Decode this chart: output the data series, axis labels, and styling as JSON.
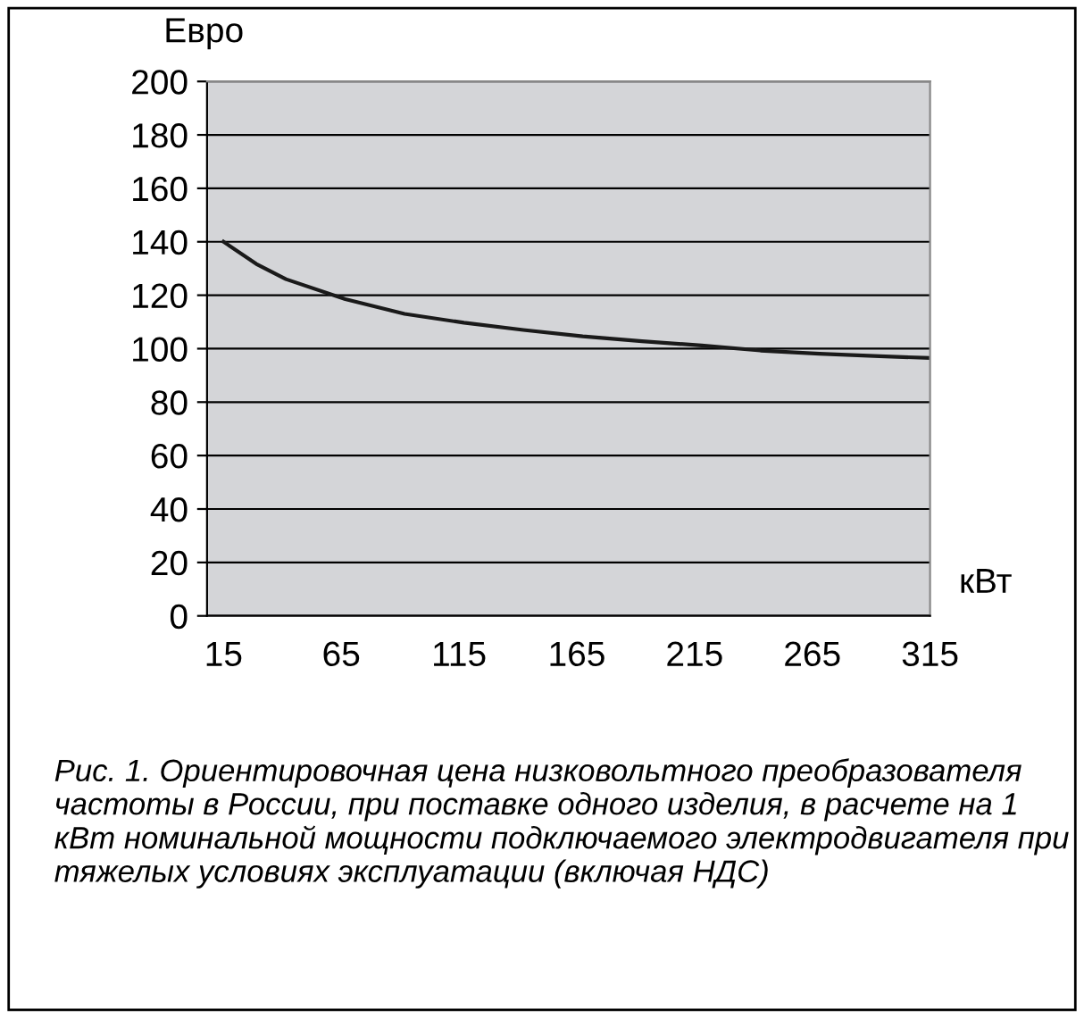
{
  "chart_data": {
    "type": "line",
    "ylabel": "Евро",
    "xlabel": "кВт",
    "x": [
      15,
      28.9,
      41.5,
      66.7,
      91.9,
      117.1,
      142.3,
      167.5,
      192.7,
      218,
      243,
      268,
      293.5,
      315
    ],
    "series": [
      {
        "color": "#1a1a1a",
        "values": [
          140,
          131.7,
          126,
          118.5,
          113,
          109.7,
          107,
          104.6,
          102.8,
          101.2,
          99.3,
          98.1,
          97.2,
          96.5
        ]
      }
    ],
    "xlim": [
      8,
      315
    ],
    "xticks": [
      15,
      65,
      115,
      165,
      215,
      265,
      315
    ],
    "ylim": [
      0,
      200
    ],
    "yticks": [
      0,
      20,
      40,
      60,
      80,
      100,
      120,
      140,
      160,
      180,
      200
    ],
    "grid": "y",
    "legend": false,
    "marker": "none",
    "line_style": "solid",
    "annotations": [
      "Рис. 1. Ориентировочная цена низковольтного преобразователя частоты в России, при поставке одного изделия, в расчете на 1 кВт номинальной мощности подключаемого электродвигателя при тяжелых условиях эксплуатации (включая НДС)"
    ]
  }
}
